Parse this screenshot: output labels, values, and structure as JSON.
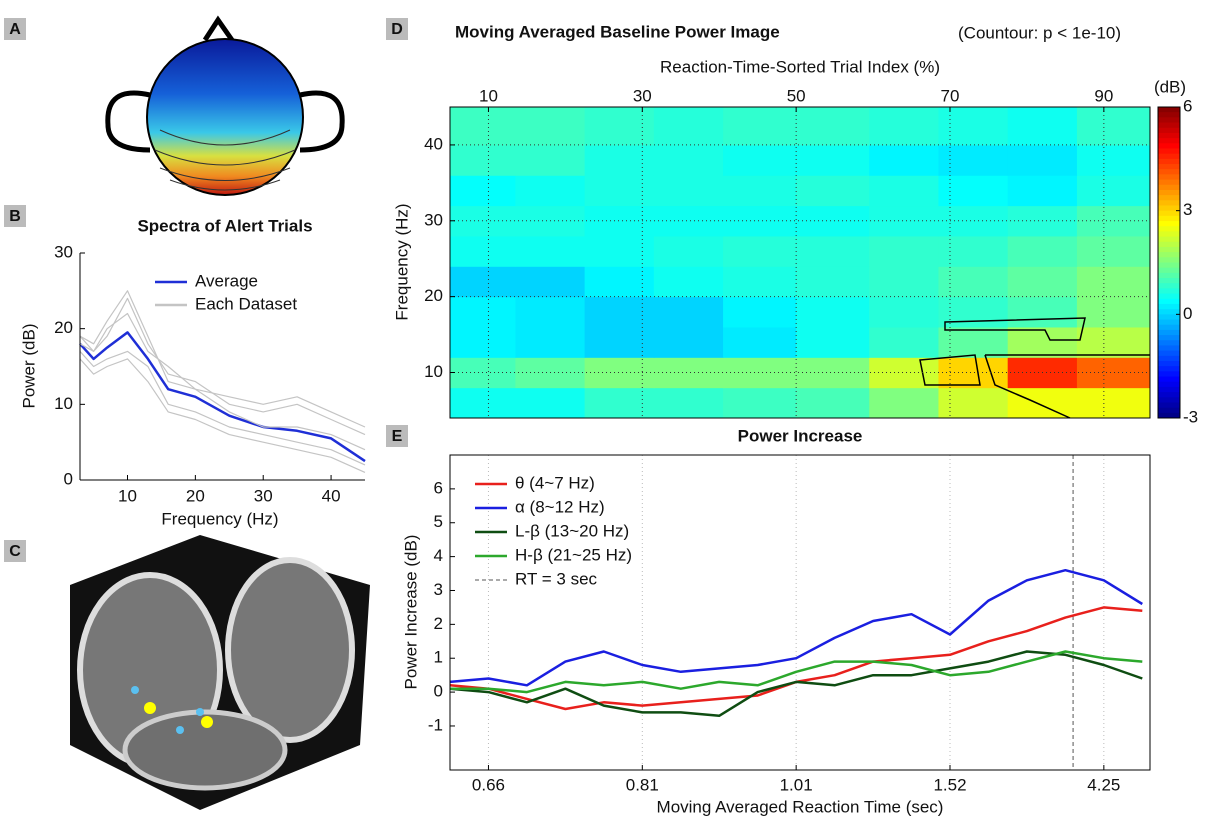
{
  "panel_labels": [
    "A",
    "B",
    "C",
    "D",
    "E"
  ],
  "chart_data": [
    {
      "type": "line",
      "title": "Spectra of Alert Trials",
      "xlabel": "Frequency (Hz)",
      "ylabel": "Power (dB)",
      "xlim": [
        3,
        45
      ],
      "ylim": [
        0,
        30
      ],
      "xticks": [
        10,
        20,
        30,
        40
      ],
      "yticks": [
        0,
        10,
        20,
        30
      ],
      "grid": false,
      "legend": "upper right",
      "x": [
        3,
        5,
        7,
        10,
        13,
        16,
        20,
        25,
        30,
        35,
        40,
        45
      ],
      "series": [
        {
          "name": "Average",
          "color": "#1f2fd6",
          "values": [
            18,
            16,
            17.5,
            19.5,
            16,
            12,
            11,
            8.5,
            7,
            6.5,
            5.5,
            2.5
          ]
        },
        {
          "name": "Each Dataset",
          "color": "#c4c4c4",
          "values": [
            19,
            17,
            19,
            24,
            18,
            14,
            13,
            10,
            9,
            10,
            8,
            6
          ]
        },
        {
          "color": "#c4c4c4",
          "values": [
            17,
            15,
            16,
            17,
            15,
            10,
            9,
            7,
            6,
            5,
            4,
            2
          ]
        },
        {
          "color": "#c4c4c4",
          "values": [
            18,
            17,
            20,
            22,
            17,
            15,
            12,
            11,
            10,
            11,
            9,
            7
          ]
        },
        {
          "color": "#c4c4c4",
          "values": [
            16,
            14,
            15,
            16,
            13,
            9,
            8,
            6,
            5,
            4,
            3,
            1
          ]
        },
        {
          "color": "#c4c4c4",
          "values": [
            19,
            18,
            21,
            25,
            19,
            13,
            12,
            9,
            7,
            7,
            6,
            4
          ]
        }
      ]
    },
    {
      "type": "heatmap",
      "title": "Moving Averaged Baseline Power Image",
      "subtitle": "(Countour: p < 1e-10)",
      "xlabel": "Reaction-Time-Sorted Trial Index (%)",
      "ylabel": "Frequency (Hz)",
      "xlim": [
        5,
        96
      ],
      "ylim": [
        4,
        45
      ],
      "xticks": [
        10,
        30,
        50,
        70,
        90
      ],
      "yticks": [
        10,
        20,
        30,
        40
      ],
      "grid": true,
      "clim": [
        -3,
        6
      ],
      "cticks": [
        -3,
        0,
        3,
        6
      ],
      "clabel": "(dB)",
      "x": [
        9,
        18,
        27,
        36,
        45,
        55,
        64,
        73,
        82,
        91
      ],
      "y": [
        6,
        10,
        14,
        18,
        22,
        26,
        30,
        34,
        38,
        42
      ],
      "z": [
        [
          0.5,
          0.5,
          0.8,
          0.8,
          0.9,
          1.0,
          1.5,
          2.2,
          2.5,
          2.5
        ],
        [
          1.0,
          1.2,
          1.5,
          1.5,
          1.5,
          1.5,
          2.2,
          3.0,
          4.5,
          4.0
        ],
        [
          0.3,
          0.2,
          0.0,
          0.0,
          0.2,
          0.5,
          0.8,
          1.2,
          1.8,
          2.0
        ],
        [
          0.3,
          0.2,
          0.0,
          0.0,
          0.3,
          0.5,
          0.7,
          0.8,
          1.0,
          1.5
        ],
        [
          0.0,
          0.0,
          0.3,
          0.5,
          0.6,
          0.7,
          0.8,
          1.0,
          1.2,
          1.5
        ],
        [
          0.5,
          0.5,
          0.5,
          0.6,
          0.7,
          0.7,
          0.8,
          0.8,
          1.0,
          1.2
        ],
        [
          0.6,
          0.6,
          0.5,
          0.5,
          0.5,
          0.5,
          0.6,
          0.6,
          0.7,
          1.0
        ],
        [
          0.4,
          0.5,
          0.6,
          0.6,
          0.6,
          0.7,
          0.6,
          0.4,
          0.3,
          0.6
        ],
        [
          0.8,
          0.8,
          0.6,
          0.6,
          0.5,
          0.5,
          0.3,
          0.2,
          0.2,
          0.5
        ],
        [
          0.9,
          0.9,
          0.8,
          0.7,
          0.8,
          0.8,
          0.7,
          0.6,
          0.5,
          0.8
        ]
      ]
    },
    {
      "type": "line",
      "title": "Power Increase",
      "xlabel": "Moving Averaged Reaction Time (sec)",
      "ylabel": "Power Increase (dB)",
      "xlim": [
        5,
        96
      ],
      "ylim": [
        -2.3,
        7
      ],
      "xticks": [
        {
          "value": 10,
          "label": "0.66"
        },
        {
          "value": 30,
          "label": "0.81"
        },
        {
          "value": 50,
          "label": "1.01"
        },
        {
          "value": 70,
          "label": "1.52"
        },
        {
          "value": 90,
          "label": "4.25"
        }
      ],
      "yticks": [
        -1,
        0,
        1,
        2,
        3,
        4,
        5,
        6
      ],
      "grid": true,
      "legend": "upper left",
      "reference_line": {
        "x": 86,
        "label": "RT = 3 sec"
      },
      "x": [
        5,
        10,
        15,
        20,
        25,
        30,
        35,
        40,
        45,
        50,
        55,
        60,
        65,
        70,
        75,
        80,
        85,
        90,
        95
      ],
      "series": [
        {
          "name": "θ (4~7 Hz)",
          "color": "#e8201c",
          "values": [
            0.2,
            0.1,
            -0.2,
            -0.5,
            -0.3,
            -0.4,
            -0.3,
            -0.2,
            -0.1,
            0.3,
            0.5,
            0.9,
            1.0,
            1.1,
            1.5,
            1.8,
            2.2,
            2.5,
            2.4
          ]
        },
        {
          "name": "α (8~12 Hz)",
          "color": "#1a1fe0",
          "values": [
            0.3,
            0.4,
            0.2,
            0.9,
            1.2,
            0.8,
            0.6,
            0.7,
            0.8,
            1.0,
            1.6,
            2.1,
            2.3,
            1.7,
            2.7,
            3.3,
            3.6,
            3.3,
            2.6
          ]
        },
        {
          "name": "L-β (13~20 Hz)",
          "color": "#0f4d12",
          "values": [
            0.1,
            0.0,
            -0.3,
            0.1,
            -0.4,
            -0.6,
            -0.6,
            -0.7,
            0.0,
            0.3,
            0.2,
            0.5,
            0.5,
            0.7,
            0.9,
            1.2,
            1.1,
            0.8,
            0.4
          ]
        },
        {
          "name": "H-β (21~25 Hz)",
          "color": "#2ca82c",
          "values": [
            0.1,
            0.1,
            0.0,
            0.3,
            0.2,
            0.3,
            0.1,
            0.3,
            0.2,
            0.6,
            0.9,
            0.9,
            0.8,
            0.5,
            0.6,
            0.9,
            1.2,
            1.0,
            0.9
          ]
        }
      ]
    }
  ]
}
